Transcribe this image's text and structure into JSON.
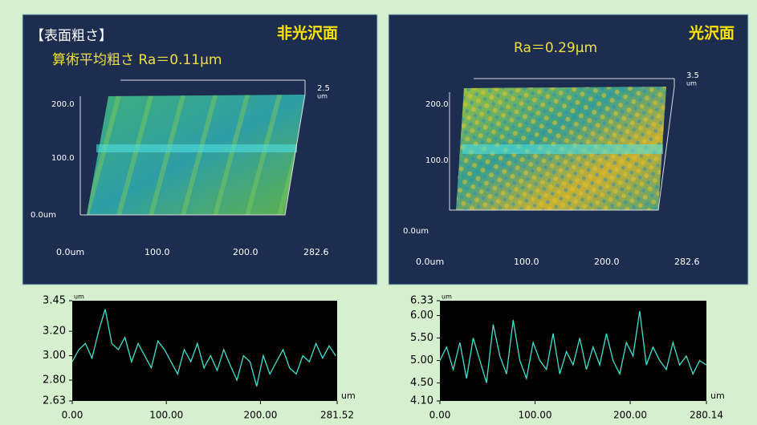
{
  "surfaces": [
    {
      "heading": "【表面粗さ】",
      "ra": "算術平均粗さ Ra＝0.11μm",
      "finish": "非光沢面",
      "z_top": "2.5",
      "z_unit": "um",
      "y_labels": [
        "200.0",
        "100.0",
        "0.0um"
      ],
      "x_labels": [
        "0.0um",
        "100.0",
        "200.0",
        "282.6"
      ]
    },
    {
      "ra": "Ra＝0.29μm",
      "finish": "光沢面",
      "z_top": "3.5",
      "z_unit": "um",
      "y_labels": [
        "200.0",
        "100.0",
        "0.0um"
      ],
      "x_labels": [
        "0.0um",
        "100.0",
        "200.0",
        "282.6"
      ]
    }
  ],
  "chart_data": [
    {
      "type": "line",
      "color": "#40e0d0",
      "y_unit": "um",
      "x_unit": "um",
      "ylim": [
        2.63,
        3.45
      ],
      "yticks": [
        3.45,
        {
          "value": 3.2,
          "label": "3.20"
        },
        {
          "value": 3,
          "label": "3.00"
        },
        {
          "value": 2.8,
          "label": "2.80"
        },
        2.63
      ],
      "xlim": [
        0,
        281.52
      ],
      "xticks": [
        {
          "value": 0,
          "label": "0.00"
        },
        {
          "value": 100,
          "label": "100.00"
        },
        {
          "value": 200,
          "label": "200.00"
        },
        281.52
      ],
      "x": [
        0,
        7,
        14,
        21,
        28,
        35,
        42,
        49,
        56,
        63,
        70,
        77,
        84,
        91,
        98,
        105,
        112,
        119,
        126,
        133,
        140,
        147,
        154,
        161,
        168,
        175,
        182,
        189,
        196,
        203,
        210,
        217,
        224,
        231,
        238,
        245,
        252,
        259,
        266,
        273,
        280
      ],
      "values": [
        2.95,
        3.05,
        3.1,
        2.98,
        3.2,
        3.38,
        3.1,
        3.05,
        3.15,
        2.95,
        3.1,
        3.0,
        2.9,
        3.12,
        3.05,
        2.95,
        2.85,
        3.05,
        2.95,
        3.1,
        2.9,
        3.0,
        2.88,
        3.05,
        2.92,
        2.8,
        3.0,
        2.95,
        2.75,
        3.0,
        2.85,
        2.95,
        3.05,
        2.9,
        2.85,
        3.0,
        2.95,
        3.1,
        2.98,
        3.08,
        3.0
      ]
    },
    {
      "type": "line",
      "color": "#40e0d0",
      "y_unit": "um",
      "x_unit": "um",
      "ylim": [
        4.1,
        6.33
      ],
      "yticks": [
        6.33,
        {
          "value": 6,
          "label": "6.00"
        },
        {
          "value": 5.5,
          "label": "5.50"
        },
        {
          "value": 5,
          "label": "5.00"
        },
        {
          "value": 4.5,
          "label": "4.50"
        },
        {
          "value": 4.1,
          "label": "4.10"
        }
      ],
      "xlim": [
        0,
        280.14
      ],
      "xticks": [
        {
          "value": 0,
          "label": "0.00"
        },
        {
          "value": 100,
          "label": "100.00"
        },
        {
          "value": 200,
          "label": "200.00"
        },
        280.14
      ],
      "x": [
        0,
        7,
        14,
        21,
        28,
        35,
        42,
        49,
        56,
        63,
        70,
        77,
        84,
        91,
        98,
        105,
        112,
        119,
        126,
        133,
        140,
        147,
        154,
        161,
        168,
        175,
        182,
        189,
        196,
        203,
        210,
        217,
        224,
        231,
        238,
        245,
        252,
        259,
        266,
        273,
        280
      ],
      "values": [
        5.0,
        5.3,
        4.8,
        5.4,
        4.6,
        5.5,
        5.0,
        4.5,
        5.8,
        5.1,
        4.7,
        5.9,
        5.0,
        4.6,
        5.4,
        5.0,
        4.8,
        5.6,
        4.7,
        5.2,
        4.9,
        5.5,
        4.8,
        5.3,
        4.9,
        5.6,
        5.0,
        4.7,
        5.4,
        5.1,
        6.1,
        4.9,
        5.3,
        5.0,
        4.8,
        5.4,
        4.9,
        5.1,
        4.7,
        5.0,
        4.9
      ]
    }
  ]
}
